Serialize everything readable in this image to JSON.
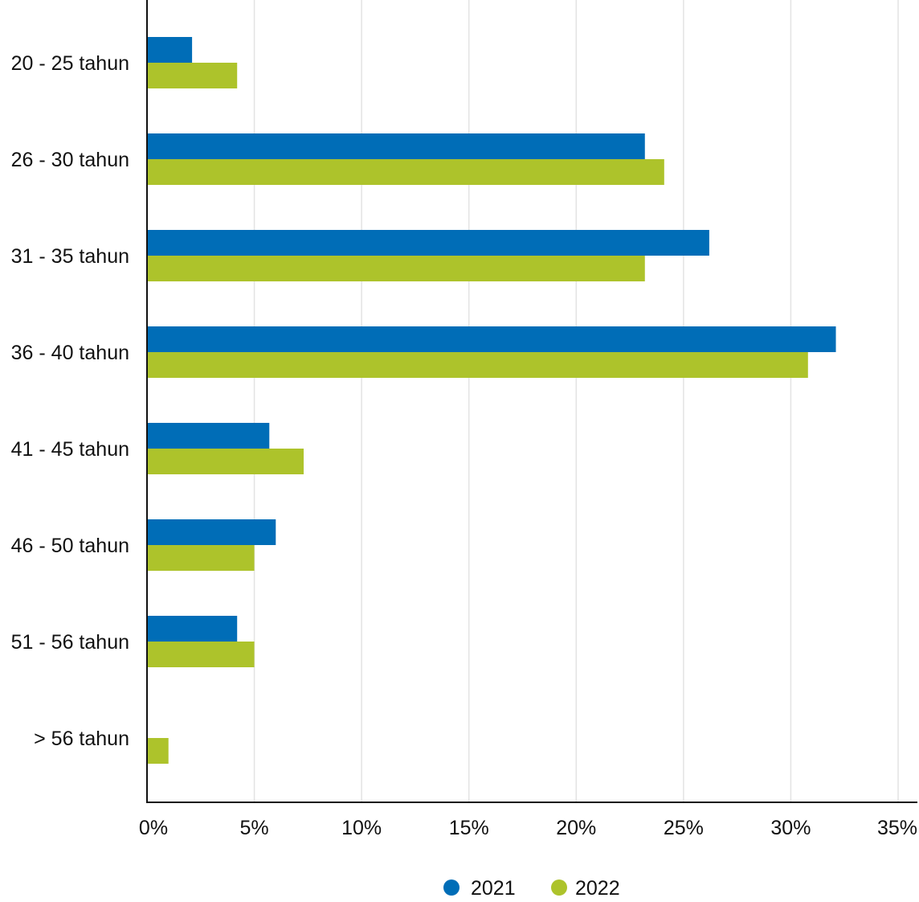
{
  "chart_data": {
    "type": "bar",
    "orientation": "horizontal",
    "categories": [
      "20 - 25 tahun",
      "26 - 30 tahun",
      "31 - 35 tahun",
      "36 - 40 tahun",
      "41 - 45 tahun",
      "46 - 50 tahun",
      "51 - 56 tahun",
      "> 56 tahun"
    ],
    "series": [
      {
        "name": "2021",
        "color": "#006DB7",
        "values": [
          2.1,
          23.2,
          26.2,
          32.1,
          5.7,
          6.0,
          4.2,
          0
        ]
      },
      {
        "name": "2022",
        "color": "#ADC32B",
        "values": [
          4.2,
          24.1,
          23.2,
          30.8,
          7.3,
          5.0,
          5.0,
          1.0
        ]
      }
    ],
    "x_ticks": [
      "0%",
      "5%",
      "10%",
      "15%",
      "20%",
      "25%",
      "30%",
      "35%"
    ],
    "xlim": [
      0,
      35
    ],
    "grid": true,
    "legend_position": "bottom-center",
    "title": "",
    "xlabel": "",
    "ylabel": ""
  }
}
